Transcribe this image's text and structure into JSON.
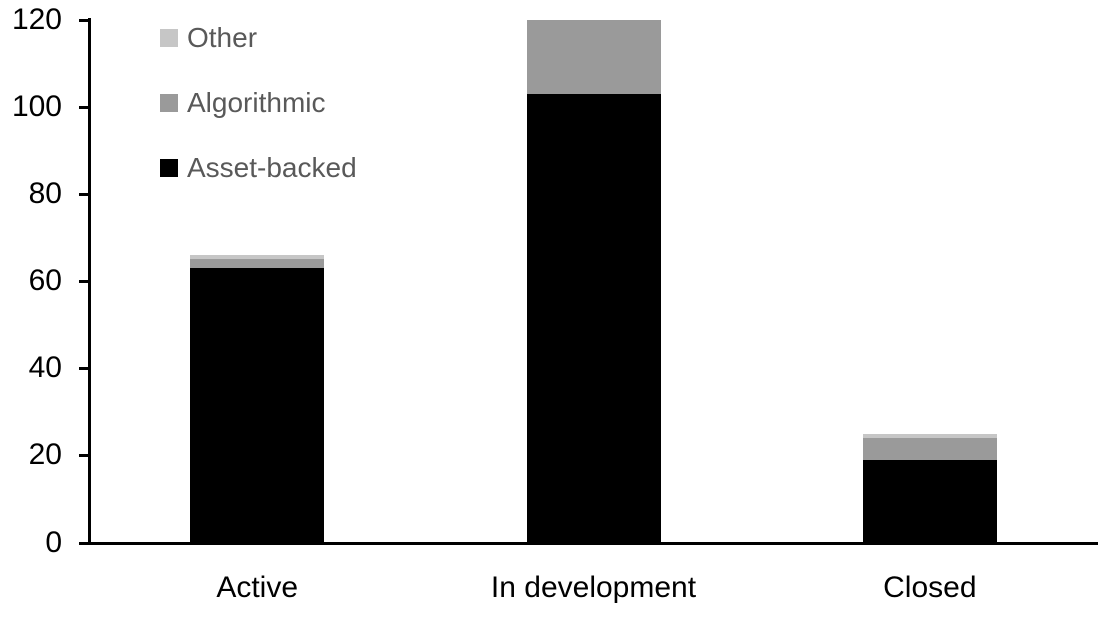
{
  "chart_data": {
    "type": "bar",
    "stacked": true,
    "title": "",
    "xlabel": "",
    "ylabel": "",
    "categories": [
      "Active",
      "In development",
      "Closed"
    ],
    "series": [
      {
        "name": "Asset-backed",
        "color": "#000000",
        "values": [
          63,
          103,
          19
        ]
      },
      {
        "name": "Algorithmic",
        "color": "#9A9A9A",
        "values": [
          2,
          17,
          5
        ]
      },
      {
        "name": "Other",
        "color": "#C6C6C6",
        "values": [
          1,
          0,
          1
        ]
      }
    ],
    "totals": [
      66,
      120,
      25
    ],
    "axes": {
      "ylim": [
        0,
        120
      ],
      "ytick_step": 20,
      "yticks": [
        0,
        20,
        40,
        60,
        80,
        100,
        120
      ],
      "ytick_labels": [
        "0",
        "20",
        "40",
        "60",
        "80",
        "100",
        "120"
      ],
      "grid": false,
      "axis_color": "#000000",
      "tick_label_color": "#000000"
    },
    "legend": {
      "position": "top-left-inside",
      "order_top_to_bottom": [
        "Other",
        "Algorithmic",
        "Asset-backed"
      ],
      "text_color": "#595959"
    },
    "background_color": "#FFFFFF"
  }
}
